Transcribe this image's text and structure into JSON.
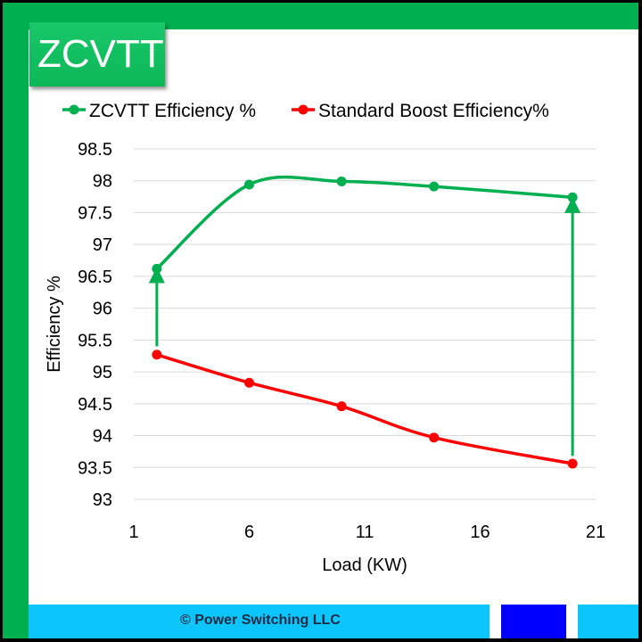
{
  "badge": "ZCVTT",
  "footer": "© Power Switching LLC",
  "colors": {
    "zcvtt": "#00b050",
    "standard": "#ff0000",
    "frame": "#00b050",
    "footer": "#0cc6fb",
    "footer_block": "#0000ff"
  },
  "chart_data": {
    "type": "line",
    "title": "",
    "xlabel": "Load (KW)",
    "ylabel": "Efficiency %",
    "xlim": [
      1,
      21
    ],
    "ylim": [
      93,
      98.5
    ],
    "xticks": [
      1,
      6,
      11,
      16,
      21
    ],
    "yticks": [
      93,
      93.5,
      94,
      94.5,
      95,
      95.5,
      96,
      96.5,
      97,
      97.5,
      98,
      98.5
    ],
    "grid": true,
    "legend_position": "top",
    "series": [
      {
        "name": "ZCVTT Efficiency %",
        "color": "#00b050",
        "x": [
          2,
          6,
          10,
          14,
          20
        ],
        "y": [
          96.62,
          97.94,
          97.99,
          97.91,
          97.74
        ]
      },
      {
        "name": "Standard Boost Efficiency%",
        "color": "#ff0000",
        "x": [
          2,
          6,
          10,
          14,
          20
        ],
        "y": [
          95.27,
          94.83,
          94.46,
          93.97,
          93.56
        ]
      }
    ],
    "annotations": [
      {
        "type": "arrow",
        "x": 2,
        "from": 95.4,
        "to": 96.52,
        "color": "#00b050"
      },
      {
        "type": "arrow",
        "x": 20,
        "from": 93.68,
        "to": 97.62,
        "color": "#00b050"
      }
    ]
  }
}
